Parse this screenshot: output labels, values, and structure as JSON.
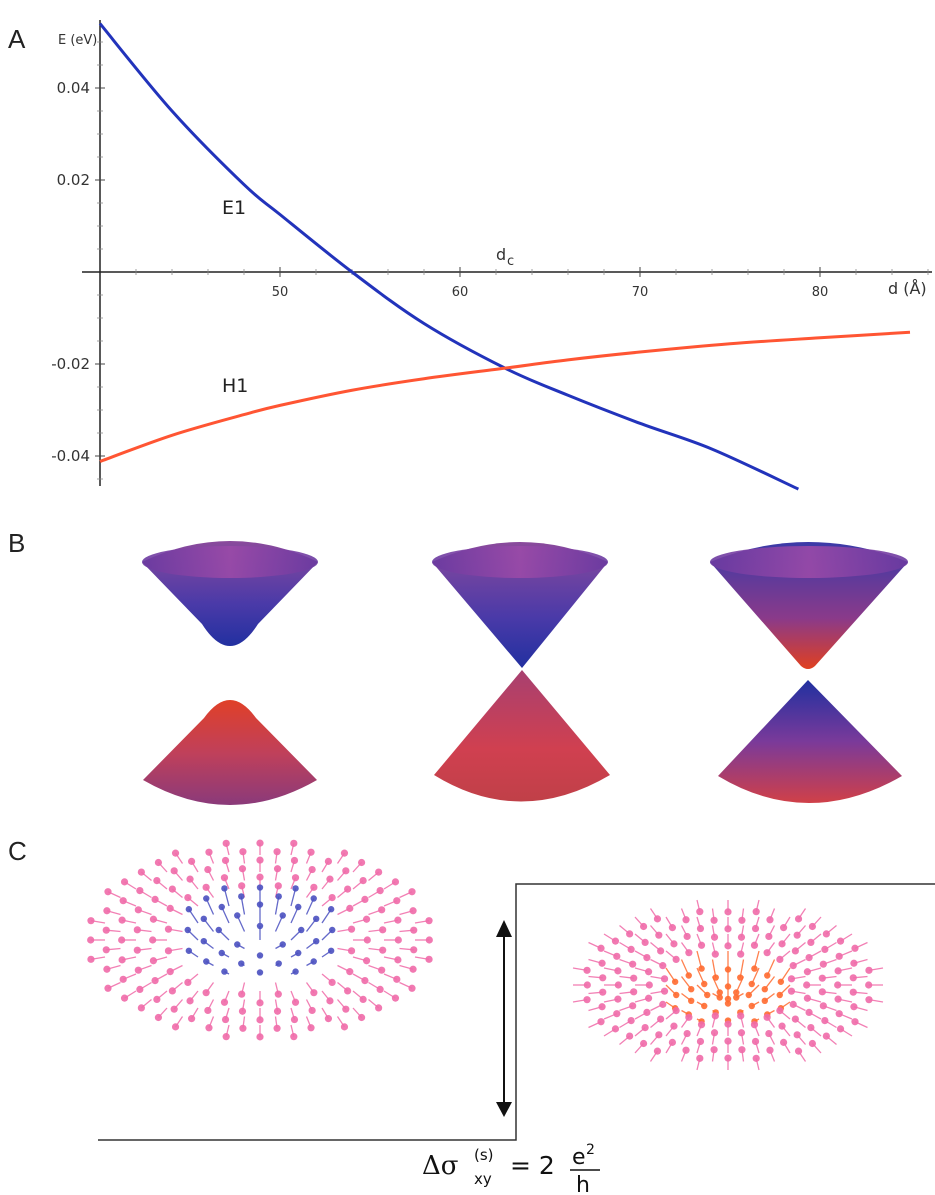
{
  "panels": {
    "a": "A",
    "b": "B",
    "c": "C"
  },
  "chart_data": {
    "type": "line",
    "title": "",
    "xlabel": "d (Å)",
    "ylabel": "E (eV)",
    "xlim": [
      40,
      86
    ],
    "ylim": [
      -0.047,
      0.055
    ],
    "xticks": [
      50,
      60,
      70,
      80
    ],
    "yticks": [
      0.04,
      0.02,
      -0.02,
      -0.04
    ],
    "xtick_labels": [
      "50",
      "60",
      "70",
      "80"
    ],
    "ytick_labels": [
      "0.04",
      "0.02",
      "-0.02",
      "-0.04"
    ],
    "crossing_label": "d",
    "crossing_label_sub": "c",
    "series": [
      {
        "name": "E1",
        "color": "#2233bb",
        "x": [
          40,
          44,
          48,
          50,
          54,
          58,
          62.5,
          66,
          70,
          74,
          78.8
        ],
        "y": [
          0.054,
          0.035,
          0.019,
          0.0125,
          0.0,
          -0.0112,
          -0.0209,
          -0.0268,
          -0.0329,
          -0.0385,
          -0.0472
        ]
      },
      {
        "name": "H1",
        "color": "#ff5533",
        "x": [
          40,
          44,
          48,
          50,
          54,
          58,
          62.5,
          66,
          70,
          75,
          80,
          85
        ],
        "y": [
          -0.0412,
          -0.0355,
          -0.031,
          -0.029,
          -0.0257,
          -0.0232,
          -0.0209,
          -0.0191,
          -0.0174,
          -0.0156,
          -0.0143,
          -0.0131
        ]
      }
    ]
  },
  "formula": {
    "lhs": "Δσ",
    "sup": "(s)",
    "sub": "xy",
    "eq": "= 2",
    "num": "e",
    "num_sup": "2",
    "den": "h"
  },
  "colors": {
    "cone_blue": "#2a3aa8",
    "cone_purple": "#7a3a9a",
    "cone_red": "#e0402a",
    "spin_pink": "#f06aa8",
    "spin_blue": "#4a50c0",
    "spin_orange": "#ff6a30"
  }
}
